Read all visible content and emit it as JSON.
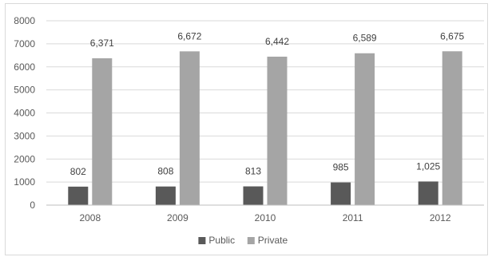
{
  "chart_data": {
    "type": "bar",
    "title": "",
    "xlabel": "",
    "ylabel": "",
    "categories": [
      "2008",
      "2009",
      "2010",
      "2011",
      "2012"
    ],
    "series": [
      {
        "name": "Public",
        "values": [
          802,
          808,
          813,
          985,
          1025
        ],
        "labels": [
          "802",
          "808",
          "813",
          "985",
          "1,025"
        ],
        "color": "#595959"
      },
      {
        "name": "Private",
        "values": [
          6371,
          6672,
          6442,
          6589,
          6675
        ],
        "labels": [
          "6,371",
          "6,672",
          "6,442",
          "6,589",
          "6,675"
        ],
        "color": "#a5a5a5"
      }
    ],
    "ylim": [
      0,
      8000
    ],
    "yticks": [
      "0",
      "1000",
      "2000",
      "3000",
      "4000",
      "5000",
      "6000",
      "7000",
      "8000"
    ],
    "grid": true,
    "legend": "bottom"
  }
}
